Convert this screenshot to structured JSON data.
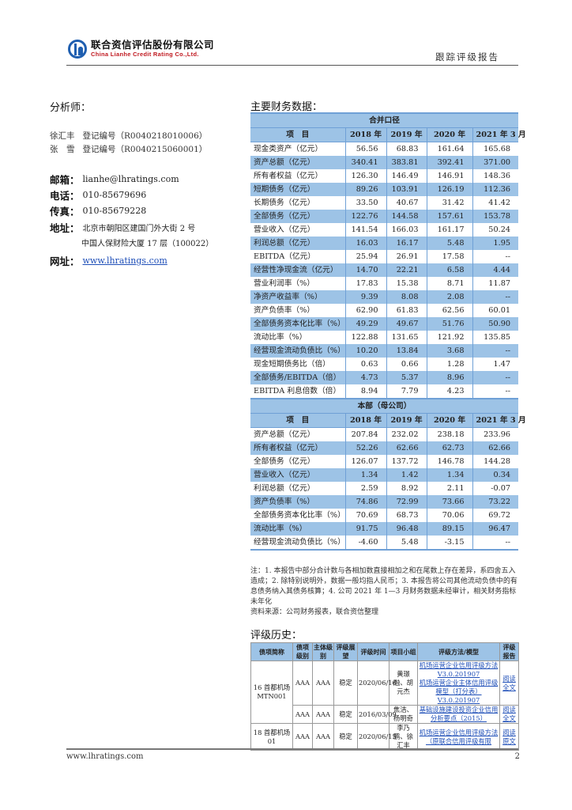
{
  "header": {
    "company_cn": "联合资信评估股份有限公司",
    "company_en": "China Lianhe Credit Rating Co.,Ltd.",
    "report_type": "跟踪评级报告"
  },
  "analysts": {
    "title": "分析师：",
    "items": [
      {
        "name": "徐汇丰",
        "reg": "登记编号（R0040218010006）"
      },
      {
        "name": "张　雪",
        "reg": "登记编号（R0040215060001）"
      }
    ]
  },
  "contact": {
    "email_label": "邮箱：",
    "email": "lianhe@lhratings.com",
    "phone_label": "电话：",
    "phone": "010-85679696",
    "fax_label": "传真：",
    "fax": "010-85679228",
    "address_label": "地址：",
    "address_line1": "北京市朝阳区建国门外大街 2 号",
    "address_line2": "中国人保财险大厦 17 层（100022）",
    "web_label": "网址：",
    "web": "www.lhratings.com"
  },
  "financial": {
    "title": "主要财务数据：",
    "columns": [
      "项　目",
      "2018 年",
      "2019 年",
      "2020 年",
      "2021 年 3 月"
    ],
    "groups": [
      {
        "label": "合并口径",
        "rows": [
          [
            "现金类资产（亿元）",
            "56.56",
            "68.83",
            "161.64",
            "165.68"
          ],
          [
            "资产总额（亿元）",
            "340.41",
            "383.81",
            "392.41",
            "371.00"
          ],
          [
            "所有者权益（亿元）",
            "126.30",
            "146.49",
            "146.91",
            "148.36"
          ],
          [
            "短期债务（亿元）",
            "89.26",
            "103.91",
            "126.19",
            "112.36"
          ],
          [
            "长期债务（亿元）",
            "33.50",
            "40.67",
            "31.42",
            "41.42"
          ],
          [
            "全部债务（亿元）",
            "122.76",
            "144.58",
            "157.61",
            "153.78"
          ],
          [
            "营业收入（亿元）",
            "141.54",
            "166.03",
            "161.17",
            "50.24"
          ],
          [
            "利润总额（亿元）",
            "16.03",
            "16.17",
            "5.48",
            "1.95"
          ],
          [
            "EBITDA（亿元）",
            "25.94",
            "26.91",
            "17.58",
            "--"
          ],
          [
            "经营性净现金流（亿元）",
            "14.70",
            "22.21",
            "6.58",
            "4.44"
          ],
          [
            "营业利润率（%）",
            "17.83",
            "15.38",
            "8.71",
            "11.87"
          ],
          [
            "净资产收益率（%）",
            "9.39",
            "8.08",
            "2.08",
            "--"
          ],
          [
            "资产负债率（%）",
            "62.90",
            "61.83",
            "62.56",
            "60.01"
          ],
          [
            "全部债务资本化比率（%）",
            "49.29",
            "49.67",
            "51.76",
            "50.90"
          ],
          [
            "流动比率（%）",
            "122.88",
            "131.65",
            "121.92",
            "135.85"
          ],
          [
            "经营现金流动负债比（%）",
            "10.20",
            "13.84",
            "3.68",
            "--"
          ],
          [
            "现金短期债务比（倍）",
            "0.63",
            "0.66",
            "1.28",
            "1.47"
          ],
          [
            "全部债务/EBITDA（倍）",
            "4.73",
            "5.37",
            "8.96",
            "--"
          ],
          [
            "EBITDA 利息倍数（倍）",
            "8.94",
            "7.79",
            "4.23",
            "--"
          ]
        ]
      },
      {
        "label": "本部（母公司）",
        "rows": [
          [
            "资产总额（亿元）",
            "207.84",
            "232.02",
            "238.18",
            "233.96"
          ],
          [
            "所有者权益（亿元）",
            "52.26",
            "62.66",
            "62.73",
            "62.66"
          ],
          [
            "全部债务（亿元）",
            "126.07",
            "137.72",
            "146.78",
            "144.28"
          ],
          [
            "营业收入（亿元）",
            "1.34",
            "1.42",
            "1.34",
            "0.34"
          ],
          [
            "利润总额（亿元）",
            "2.59",
            "8.92",
            "2.11",
            "-0.07"
          ],
          [
            "资产负债率（%）",
            "74.86",
            "72.99",
            "73.66",
            "73.22"
          ],
          [
            "全部债务资本化比率（%）",
            "70.69",
            "68.73",
            "70.06",
            "69.72"
          ],
          [
            "流动比率（%）",
            "91.75",
            "96.48",
            "89.15",
            "96.47"
          ],
          [
            "经营现金流动负债比（%）",
            "-4.60",
            "5.48",
            "-3.15",
            "--"
          ]
        ]
      }
    ],
    "note": "注：1. 本报告中部分合计数与各相加数直接相加之和在尾数上存在差异，系四舍五入造成；2. 除特别说明外，数据一般均指人民币；3. 本报告将公司其他流动负债中的有息债务纳入其债务核算；4. 公司 2021 年 1—3 月财务数据未经审计，相关财务指标未年化",
    "source": "资料来源：公司财务报表，联合资信整理"
  },
  "history": {
    "title": "评级历史：",
    "columns": [
      "债项简称",
      "债项级别",
      "主体级别",
      "评级展望",
      "评级时间",
      "项目小组",
      "评级方法/模型",
      "评级报告"
    ],
    "rows": [
      {
        "bond": "16 首都机场 MTN001",
        "bond_rating": "AAA",
        "issuer_rating": "AAA",
        "outlook": "稳定",
        "date": "2020/06/16",
        "team": "黄璟融、胡元杰",
        "methods": [
          "机场运营企业信用评级方法 V3.0.201907",
          "机场运营企业主体信用评级模型（打分表） V3.0.201907"
        ],
        "report": "阅读全文"
      },
      {
        "bond": "",
        "bond_rating": "AAA",
        "issuer_rating": "AAA",
        "outlook": "稳定",
        "date": "2016/03/09",
        "team": "焦洁、杨明奇",
        "methods": [
          "基础设施建设投资企业信用分析要点（2015）"
        ],
        "report": "阅读全文"
      },
      {
        "bond": "18 首都机场 01",
        "bond_rating": "AAA",
        "issuer_rating": "AAA",
        "outlook": "稳定",
        "date": "2020/06/15",
        "team": "李乃鹏、徐汇丰",
        "methods": [
          "机场运营企业信用评级方法（原联合信用评级有限"
        ],
        "report": "阅读原文"
      }
    ]
  },
  "footer": {
    "website": "www.lhratings.com",
    "page": "2"
  },
  "colors": {
    "table_header": "#9dc3e6",
    "table_line": "#6fa0d6",
    "link": "#1f4fb8",
    "logo_blue": "#1f5fb0",
    "logo_red": "#c0181f"
  }
}
